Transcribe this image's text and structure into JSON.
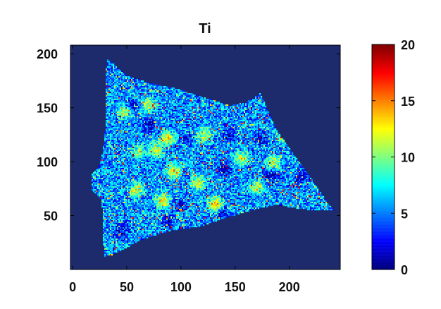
{
  "chart_data": {
    "type": "heatmap",
    "title": "Ti",
    "xlabel": "",
    "ylabel": "",
    "xlim": [
      -2,
      247
    ],
    "ylim": [
      0,
      208
    ],
    "x_ticks": [
      0,
      50,
      100,
      150,
      200
    ],
    "y_ticks": [
      50,
      100,
      150,
      200
    ],
    "colorbar": {
      "min": 0,
      "max": 20,
      "ticks": [
        0,
        5,
        10,
        15,
        20
      ],
      "colormap": "jet"
    },
    "background_value": 0,
    "sample_polygon": [
      [
        32,
        195
      ],
      [
        36,
        192
      ],
      [
        50,
        180
      ],
      [
        70,
        173
      ],
      [
        95,
        168
      ],
      [
        120,
        160
      ],
      [
        145,
        152
      ],
      [
        160,
        155
      ],
      [
        173,
        163
      ],
      [
        177,
        155
      ],
      [
        188,
        130
      ],
      [
        205,
        105
      ],
      [
        220,
        85
      ],
      [
        235,
        62
      ],
      [
        242,
        55
      ],
      [
        222,
        55
      ],
      [
        205,
        57
      ],
      [
        188,
        60
      ],
      [
        165,
        55
      ],
      [
        145,
        49
      ],
      [
        118,
        40
      ],
      [
        90,
        36
      ],
      [
        62,
        27
      ],
      [
        38,
        14
      ],
      [
        29,
        12
      ],
      [
        28,
        35
      ],
      [
        27,
        65
      ],
      [
        17,
        75
      ],
      [
        17,
        88
      ],
      [
        24,
        95
      ],
      [
        28,
        110
      ],
      [
        30,
        130
      ],
      [
        30,
        155
      ],
      [
        30,
        175
      ]
    ],
    "hotspots": [
      {
        "x": 88,
        "y": 122,
        "value": 12
      },
      {
        "x": 77,
        "y": 111,
        "value": 13
      },
      {
        "x": 61,
        "y": 109,
        "value": 10
      },
      {
        "x": 93,
        "y": 91,
        "value": 14
      },
      {
        "x": 122,
        "y": 124,
        "value": 11
      },
      {
        "x": 156,
        "y": 103,
        "value": 12
      },
      {
        "x": 185,
        "y": 99,
        "value": 13
      },
      {
        "x": 193,
        "y": 123,
        "value": 9
      },
      {
        "x": 59,
        "y": 74,
        "value": 12
      },
      {
        "x": 83,
        "y": 64,
        "value": 14
      },
      {
        "x": 116,
        "y": 81,
        "value": 12
      },
      {
        "x": 132,
        "y": 61,
        "value": 15
      },
      {
        "x": 170,
        "y": 77,
        "value": 11
      },
      {
        "x": 48,
        "y": 146,
        "value": 11
      },
      {
        "x": 70,
        "y": 153,
        "value": 12
      }
    ],
    "cold_spots": [
      {
        "x": 55,
        "y": 151,
        "r": 9
      },
      {
        "x": 70,
        "y": 134,
        "r": 10
      },
      {
        "x": 105,
        "y": 121,
        "r": 8
      },
      {
        "x": 145,
        "y": 126,
        "r": 10
      },
      {
        "x": 174,
        "y": 121,
        "r": 9
      },
      {
        "x": 183,
        "y": 87,
        "r": 12
      },
      {
        "x": 140,
        "y": 94,
        "r": 11
      },
      {
        "x": 100,
        "y": 60,
        "r": 9
      },
      {
        "x": 45,
        "y": 35,
        "r": 10
      },
      {
        "x": 88,
        "y": 44,
        "r": 9
      },
      {
        "x": 139,
        "y": 52,
        "r": 8
      },
      {
        "x": 212,
        "y": 87,
        "r": 10
      }
    ]
  }
}
